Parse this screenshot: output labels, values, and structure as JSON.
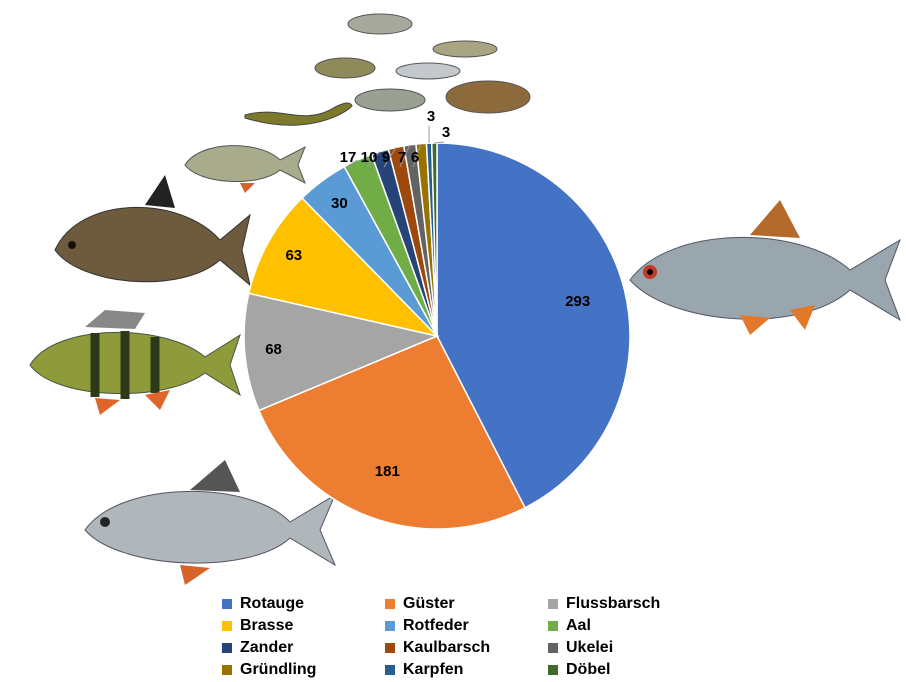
{
  "chart_data": {
    "type": "pie",
    "categories": [
      "Rotauge",
      "Güster",
      "Flussbarsch",
      "Brasse",
      "Rotfeder",
      "Aal",
      "Zander",
      "Kaulbarsch",
      "Ukelei",
      "Gründling",
      "Karpfen",
      "Döbel"
    ],
    "values": [
      293,
      181,
      68,
      63,
      30,
      17,
      10,
      9,
      7,
      6,
      3,
      3
    ],
    "colors": [
      "#4472c4",
      "#ed7d31",
      "#a5a5a5",
      "#ffc000",
      "#5b9bd5",
      "#70ad47",
      "#264478",
      "#9e480e",
      "#636363",
      "#997300",
      "#255e91",
      "#43682b"
    ],
    "legend": "bottom"
  }
}
